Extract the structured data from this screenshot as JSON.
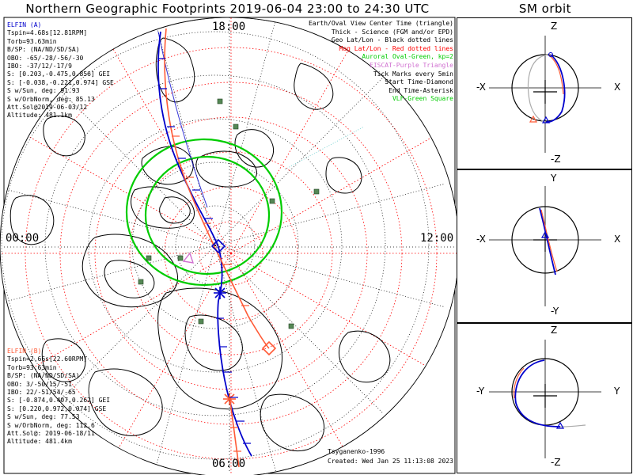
{
  "title": "Northern Geographic Footprints 2019-06-04 23:00 to 24:30 UTC",
  "orbit_title": "SM orbit",
  "map": {
    "time_labels": {
      "top": "18:00",
      "left": "00:00",
      "right": "12:00",
      "bottom": "06:00"
    }
  },
  "elfin_a": {
    "header": "ELFIN (A)",
    "lines": [
      "Tspin=4.68s[12.81RPM]",
      "Torb=93.63min",
      "B/SP: (NA/ND/SD/SA)",
      "OBO: -65/-28/-56/-30",
      "IBO: -37/12/-17/9",
      "S: [0.203,-0.475,0.856] GEI",
      "S: [-0.038,-0.221,0.974] GSE",
      "S w/Sun, deg: 91.93",
      "S w/OrbNorm, deg: 85.13",
      "Att.Sol@2019-06-03/12",
      "Altitude: 481.1km"
    ],
    "color": "#0000cc"
  },
  "elfin_b": {
    "header": "ELFIN (B)",
    "lines": [
      "Tspin=2.66s[22.60RPM]",
      "Torb=93.63min",
      "B/SP: (NA/ND/SD/SA)",
      "OBO: 3/-50/15/-51",
      "IBO: 22/-51/54/-65",
      "S: [-0.874,0.407,0.262] GEI",
      "S: [0.220,0.972,0.074] GSE",
      "S w/Sun, deg: 77.53",
      "S w/OrbNorm, deg: 112.6",
      "Att.Sol@: 2019-06-18/11",
      "Altitude: 481.4km"
    ],
    "color": "#ff5a36"
  },
  "legend": [
    {
      "text": "Earth/Oval View Center Time (triangle)",
      "color": "#000000"
    },
    {
      "text": "Thick - Science (FGM and/or EPD)",
      "color": "#000000"
    },
    {
      "text": "Geo Lat/Lon - Black dotted lines",
      "color": "#000000"
    },
    {
      "text": "Mag Lat/Lon - Red dotted lines",
      "color": "#ff0000"
    },
    {
      "text": "Auroral Oval-Green, kp=2",
      "color": "#00cc00"
    },
    {
      "text": "EISCAT-Purple Triangle",
      "color": "#d070d0"
    },
    {
      "text": "Tick Marks every 5min",
      "color": "#000000"
    },
    {
      "text": "Start Time-Diamond",
      "color": "#000000"
    },
    {
      "text": "End Time-Asterisk",
      "color": "#000000"
    },
    {
      "text": "VLF-Green Square",
      "color": "#00cc00"
    }
  ],
  "footer": {
    "model": "Tsyganenko-1996",
    "created": "Created: Wed Jan 25 11:13:08 2023"
  },
  "orbit_panels": [
    {
      "top": "Z",
      "bottom": "-Z",
      "left": "-X",
      "right": "X"
    },
    {
      "top": "Y",
      "bottom": "-Y",
      "left": "-X",
      "right": "X"
    },
    {
      "top": "Z",
      "bottom": "-Z",
      "left": "-Y",
      "right": "Y"
    }
  ],
  "colors": {
    "oval": "#00cc00",
    "mag_grid": "#ff0000",
    "elfin_a": "#0000cc",
    "elfin_b": "#ff5a36",
    "vlf": "#558855"
  }
}
